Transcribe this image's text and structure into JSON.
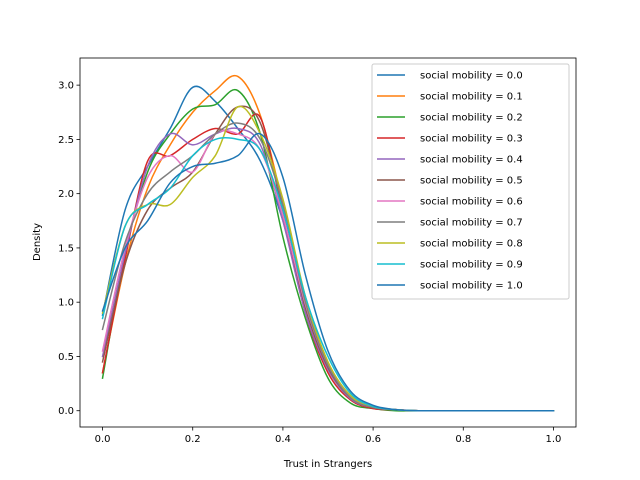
{
  "chart_data": {
    "type": "line",
    "xlabel": "Trust in Strangers",
    "ylabel": "Density",
    "xlim": [
      -0.05,
      1.05
    ],
    "ylim": [
      -0.15,
      3.25
    ],
    "xticks": [
      0.0,
      0.2,
      0.4,
      0.6,
      0.8,
      1.0
    ],
    "yticks": [
      0.0,
      0.5,
      1.0,
      1.5,
      2.0,
      2.5,
      3.0
    ],
    "xtick_labels": [
      "0.0",
      "0.2",
      "0.4",
      "0.6",
      "0.8",
      "1.0"
    ],
    "ytick_labels": [
      "0.0",
      "0.5",
      "1.0",
      "1.5",
      "2.0",
      "2.5",
      "3.0"
    ],
    "grid": false,
    "legend_position": "upper right",
    "x": [
      0.0,
      0.05,
      0.1,
      0.15,
      0.2,
      0.25,
      0.3,
      0.35,
      0.4,
      0.45,
      0.5,
      0.55,
      0.6,
      0.65,
      0.7,
      0.8,
      0.9,
      1.0
    ],
    "series": [
      {
        "name": "social mobility = 0.0",
        "color": "#1f77b4",
        "values": [
          0.88,
          1.85,
          2.25,
          2.6,
          2.98,
          2.85,
          2.6,
          2.3,
          1.75,
          0.95,
          0.4,
          0.12,
          0.03,
          0.01,
          0.0,
          0.0,
          0.0,
          0.0
        ]
      },
      {
        "name": "social mobility = 0.1",
        "color": "#ff7f0e",
        "values": [
          0.35,
          1.35,
          2.05,
          2.45,
          2.75,
          2.95,
          3.08,
          2.72,
          1.9,
          1.0,
          0.42,
          0.12,
          0.03,
          0.01,
          0.0,
          0.0,
          0.0,
          0.0
        ]
      },
      {
        "name": "social mobility = 0.2",
        "color": "#2ca02c",
        "values": [
          0.3,
          1.45,
          2.2,
          2.55,
          2.78,
          2.82,
          2.95,
          2.55,
          1.6,
          0.85,
          0.3,
          0.07,
          0.02,
          0.0,
          0.0,
          0.0,
          0.0,
          0.0
        ]
      },
      {
        "name": "social mobility = 0.3",
        "color": "#d62728",
        "values": [
          0.35,
          1.4,
          2.3,
          2.35,
          2.5,
          2.6,
          2.55,
          2.7,
          1.8,
          0.9,
          0.35,
          0.1,
          0.02,
          0.01,
          0.0,
          0.0,
          0.0,
          0.0
        ]
      },
      {
        "name": "social mobility = 0.4",
        "color": "#9467bd",
        "values": [
          0.5,
          1.45,
          2.25,
          2.55,
          2.45,
          2.55,
          2.6,
          2.45,
          1.75,
          0.9,
          0.38,
          0.11,
          0.03,
          0.01,
          0.0,
          0.0,
          0.0,
          0.0
        ]
      },
      {
        "name": "social mobility = 0.5",
        "color": "#8c564b",
        "values": [
          0.45,
          1.35,
          1.85,
          2.05,
          2.2,
          2.55,
          2.8,
          2.65,
          1.85,
          0.95,
          0.4,
          0.12,
          0.03,
          0.01,
          0.0,
          0.0,
          0.0,
          0.0
        ]
      },
      {
        "name": "social mobility = 0.6",
        "color": "#e377c2",
        "values": [
          0.55,
          1.5,
          2.15,
          2.35,
          2.2,
          2.55,
          2.55,
          2.4,
          1.8,
          0.98,
          0.42,
          0.13,
          0.04,
          0.01,
          0.0,
          0.0,
          0.0,
          0.0
        ]
      },
      {
        "name": "social mobility = 0.7",
        "color": "#7f7f7f",
        "values": [
          0.75,
          1.55,
          2.0,
          2.2,
          2.35,
          2.55,
          2.65,
          2.5,
          1.9,
          1.0,
          0.42,
          0.12,
          0.03,
          0.01,
          0.0,
          0.0,
          0.0,
          0.0
        ]
      },
      {
        "name": "social mobility = 0.8",
        "color": "#bcbd22",
        "values": [
          0.9,
          1.7,
          1.9,
          1.9,
          2.15,
          2.35,
          2.8,
          2.55,
          1.95,
          1.05,
          0.45,
          0.14,
          0.04,
          0.01,
          0.0,
          0.0,
          0.0,
          0.0
        ]
      },
      {
        "name": "social mobility = 0.9",
        "color": "#17becf",
        "values": [
          0.85,
          1.7,
          1.9,
          2.05,
          2.35,
          2.5,
          2.5,
          2.4,
          1.85,
          1.05,
          0.5,
          0.16,
          0.04,
          0.01,
          0.0,
          0.0,
          0.0,
          0.0
        ]
      },
      {
        "name": "social mobility = 1.0",
        "color": "#1f77b4",
        "values": [
          0.92,
          1.5,
          1.75,
          2.1,
          2.25,
          2.28,
          2.35,
          2.55,
          2.15,
          1.25,
          0.55,
          0.18,
          0.05,
          0.01,
          0.0,
          0.0,
          0.0,
          0.0
        ]
      }
    ]
  }
}
